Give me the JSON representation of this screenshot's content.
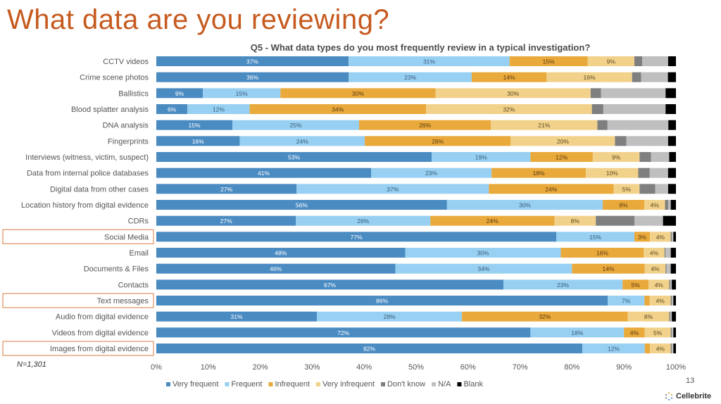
{
  "header": {
    "title": "What data are you reviewing?",
    "subtitle": "Q5 - What data types do you most frequently review in a typical investigation?"
  },
  "footer": {
    "n_label": "N=1,301",
    "page_number": "13",
    "brand": "Cellebrite"
  },
  "chart_data": {
    "type": "bar",
    "orientation": "horizontal",
    "stacked": true,
    "percent": true,
    "xlim": [
      0,
      100
    ],
    "xticks": [
      "0%",
      "10%",
      "20%",
      "30%",
      "40%",
      "50%",
      "60%",
      "70%",
      "80%",
      "90%",
      "100%"
    ],
    "legend_position": "bottom",
    "highlighted_categories": [
      "Social Media",
      "Text messages",
      "Images from digital evidence"
    ],
    "categories": [
      "CCTV videos",
      "Crime scene photos",
      "Ballistics",
      "Blood splatter analysis",
      "DNA analysis",
      "Fingerprints",
      "Interviews (witness, victim, suspect)",
      "Data from internal police databases",
      "Digital data from other cases",
      "Location history from digital evidence",
      "CDRs",
      "Social Media",
      "Email",
      "Documents & Files",
      "Contacts",
      "Text messages",
      "Audio from digital evidence",
      "Videos from digital evidence",
      "Images from digital evidence"
    ],
    "series": [
      {
        "name": "Very frequent",
        "color": "#4a8bc2",
        "label_color": "#ffffff",
        "values": [
          37,
          36,
          9,
          6,
          15,
          16,
          53,
          41,
          27,
          56,
          27,
          77,
          48,
          46,
          67,
          86,
          31,
          72,
          82
        ]
      },
      {
        "name": "Frequent",
        "color": "#97d0f2",
        "label_color": "#3a5a78",
        "values": [
          31,
          23,
          15,
          12,
          25,
          24,
          19,
          23,
          37,
          30,
          26,
          15,
          30,
          34,
          23,
          7,
          28,
          18,
          12
        ]
      },
      {
        "name": "Infrequent",
        "color": "#e9a93b",
        "label_color": "#5a3a10",
        "values": [
          15,
          14,
          30,
          34,
          26,
          28,
          12,
          18,
          24,
          8,
          24,
          3,
          16,
          14,
          5,
          1,
          32,
          4,
          1
        ]
      },
      {
        "name": "Very infrequent",
        "color": "#f2d28b",
        "label_color": "#5a4a20",
        "values": [
          9,
          16,
          30,
          32,
          21,
          20,
          9,
          10,
          5,
          4,
          8,
          4,
          4,
          4,
          4,
          4,
          8,
          5,
          4
        ]
      },
      {
        "name": "Don't know",
        "color": "#7f7f7f",
        "label_color": "#ffffff",
        "values": [
          1.5,
          1.7,
          2,
          2.2,
          2,
          2.2,
          2.2,
          2.2,
          3,
          0.6,
          7.5,
          0.2,
          0.2,
          0.2,
          0.2,
          0.2,
          0.2,
          0.2,
          0.2
        ]
      },
      {
        "name": "N/A",
        "color": "#bfbfbf",
        "label_color": "#333333",
        "values": [
          5,
          5,
          12.5,
          12,
          12,
          8,
          3.5,
          3.5,
          2.5,
          0.5,
          5.5,
          0.3,
          1,
          0.8,
          0.3,
          0.3,
          0.3,
          0.3,
          0.3
        ]
      },
      {
        "name": "Blank",
        "color": "#000000",
        "label_color": "#ffffff",
        "values": [
          1.5,
          1.5,
          2,
          2,
          1.5,
          1.5,
          1.3,
          1.5,
          1.5,
          1,
          2.5,
          0.5,
          1,
          1,
          0.8,
          0.5,
          0.8,
          0.5,
          0.5
        ]
      }
    ],
    "data_labels": {
      "Very frequent": [
        "37%",
        "36%",
        "9%",
        "6%",
        "15%",
        "16%",
        "53%",
        "41%",
        "27%",
        "56%",
        "27%",
        "77%",
        "48%",
        "46%",
        "67%",
        "86%",
        "31%",
        "72%",
        "82%"
      ],
      "Frequent": [
        "31%",
        "23%",
        "15%",
        "12%",
        "25%",
        "24%",
        "19%",
        "23%",
        "37%",
        "30%",
        "26%",
        "15%",
        "30%",
        "34%",
        "23%",
        "7%",
        "28%",
        "18%",
        "12%"
      ],
      "Infrequent": [
        "15%",
        "14%",
        "30%",
        "34%",
        "26%",
        "28%",
        "12%",
        "18%",
        "24%",
        "8%",
        "24%",
        "3%",
        "16%",
        "14%",
        "5%",
        "1%",
        "32%",
        "4%",
        "1%"
      ],
      "Very infrequent": [
        "9%",
        "16%",
        "30%",
        "32%",
        "21%",
        "20%",
        "9%",
        "10%",
        "5%",
        "4%",
        "8%",
        "4%",
        "4%",
        "4%",
        "4%",
        "4%",
        "8%",
        "5%",
        "4%"
      ]
    }
  }
}
